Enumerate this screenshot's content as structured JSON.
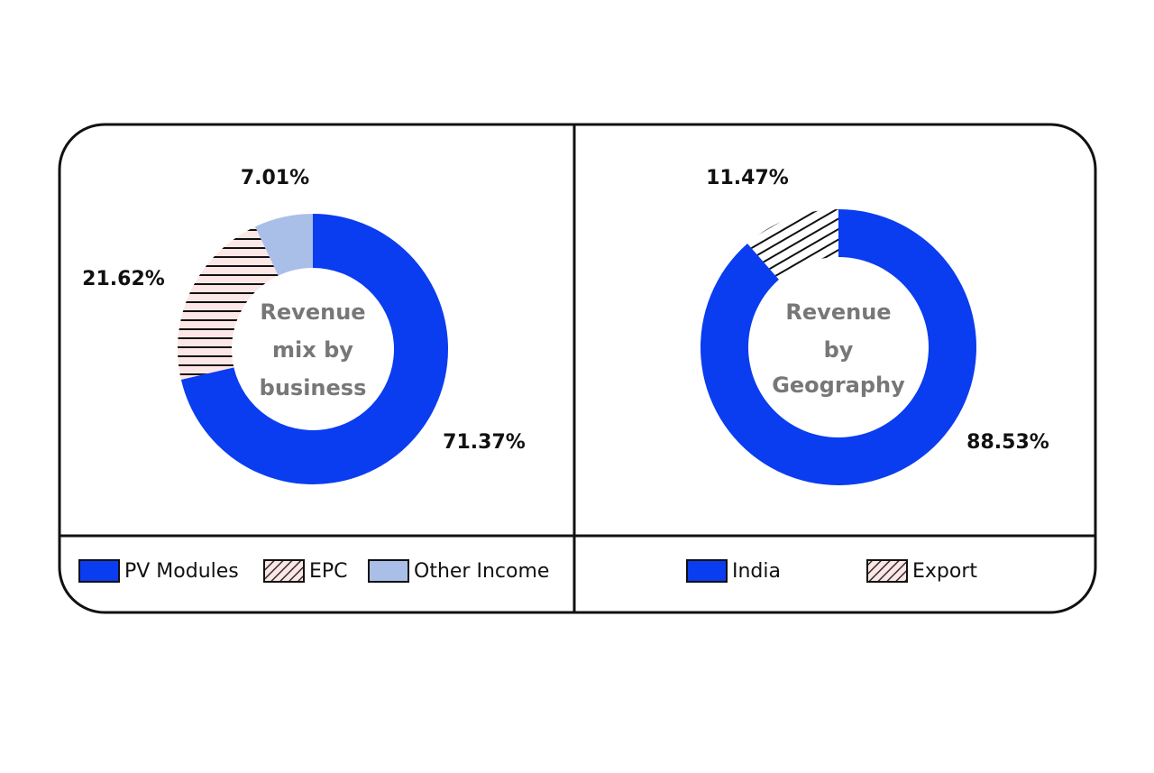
{
  "chart_data": [
    {
      "type": "pie",
      "title": [
        "Revenue",
        "mix by",
        "business"
      ],
      "categories": [
        "PV Modules",
        "EPC",
        "Other Income"
      ],
      "values": [
        71.37,
        21.62,
        7.01
      ],
      "value_labels": [
        "71.37%",
        "21.62%",
        "7.01%"
      ],
      "colors": [
        "#0a3cf0",
        "hatch-h",
        "#a9bfe8"
      ]
    },
    {
      "type": "pie",
      "title": [
        "Revenue",
        "by",
        "Geography"
      ],
      "categories": [
        "India",
        "Export"
      ],
      "values": [
        88.53,
        11.47
      ],
      "value_labels": [
        "88.53%",
        "11.47%"
      ],
      "colors": [
        "#0a3cf0",
        "hatch-d"
      ]
    }
  ]
}
